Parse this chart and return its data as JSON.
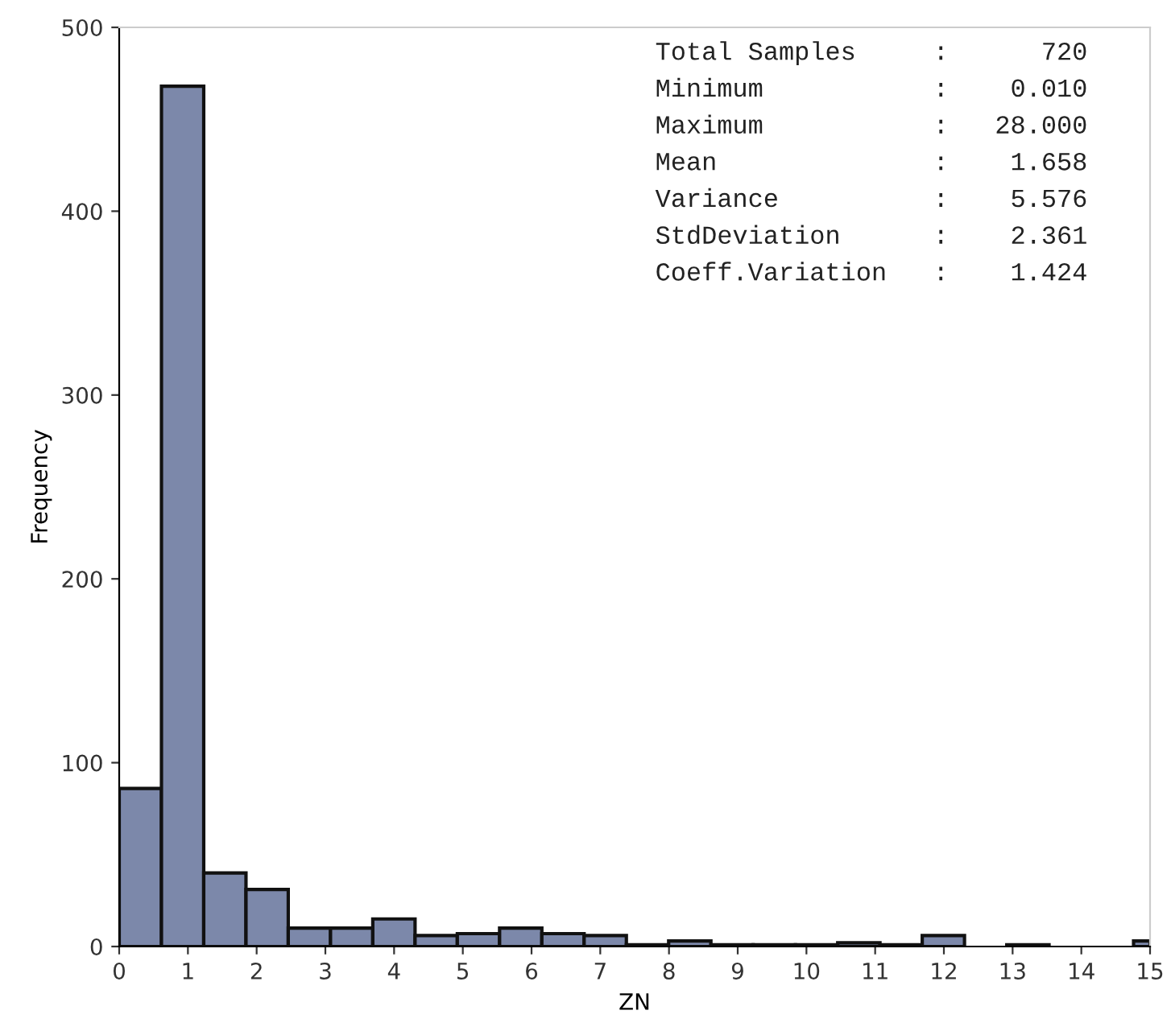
{
  "chart_data": {
    "type": "histogram",
    "xlabel": "ZN",
    "ylabel": "Frequency",
    "bins": [
      0,
      0.615,
      1.23,
      1.845,
      2.46,
      3.075,
      3.69,
      4.305,
      4.92,
      5.535,
      6.15,
      6.765,
      7.38,
      7.995,
      8.61,
      9.225,
      9.84,
      10.455,
      11.07,
      11.685,
      12.3,
      12.915,
      13.53,
      14.76,
      15
    ],
    "values": [
      86,
      468,
      40,
      31,
      10,
      10,
      15,
      6,
      7,
      10,
      7,
      6,
      1,
      3,
      1,
      1,
      1,
      2,
      1,
      6,
      0,
      1,
      0,
      3
    ],
    "color": "#7c88aa",
    "xlim": [
      0,
      15
    ],
    "xticks": [
      0,
      1,
      2,
      3,
      4,
      5,
      6,
      7,
      8,
      9,
      10,
      11,
      12,
      13,
      14,
      15
    ],
    "ylim": [
      0,
      500
    ],
    "yticks": [
      0,
      100,
      200,
      300,
      400,
      500
    ],
    "grid": false,
    "annotations": [
      "Total Samples     :      720",
      "Minimum           :    0.010",
      "Maximum           :   28.000",
      "Mean              :    1.658",
      "Variance          :    5.576",
      "StdDeviation      :    2.361",
      "Coeff.Variation   :    1.424"
    ]
  }
}
